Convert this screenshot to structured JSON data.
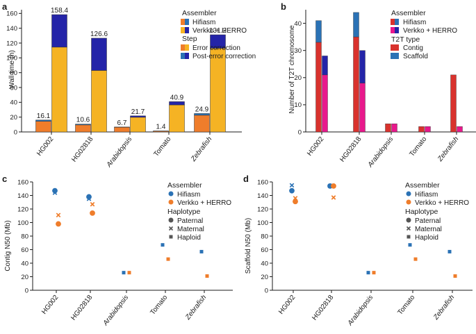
{
  "colors": {
    "hifiasm_error": "#ef7d2b",
    "hifiasm_post": "#2b72b5",
    "verkko_error": "#f5b324",
    "verkko_post": "#2424a8",
    "contig_hifiasm": "#d9322d",
    "contig_verkko": "#e8188c",
    "scaffold_hifiasm": "#2b72b5",
    "scaffold_verkko": "#2424a8",
    "scatter_hifiasm": "#2b72b5",
    "scatter_verkko": "#ef7d2b"
  },
  "panels": {
    "a": {
      "label": "a",
      "legend": {
        "assembler_title": "Assembler",
        "assembler_items": [
          "Hifiasm",
          "Verkko + HERRO"
        ],
        "step_title": "Step",
        "step_items": [
          "Error correction",
          "Post-error correction"
        ]
      }
    },
    "b": {
      "label": "b",
      "legend": {
        "assembler_title": "Assembler",
        "assembler_items": [
          "Hifiasm",
          "Verkko + HERRO"
        ],
        "type_title": "T2T type",
        "type_items": [
          "Contig",
          "Scaffold"
        ]
      }
    },
    "c": {
      "label": "c",
      "legend": {
        "assembler_title": "Assembler",
        "assembler_items": [
          "Hifiasm",
          "Verkko + HERRO"
        ],
        "haplotype_title": "Haplotype",
        "haplotype_items": [
          "Paternal",
          "Maternal",
          "Haploid"
        ]
      }
    },
    "d": {
      "label": "d",
      "legend": {
        "assembler_title": "Assembler",
        "assembler_items": [
          "Hifiasm",
          "Verkko + HERRO"
        ],
        "haplotype_title": "Haplotype",
        "haplotype_items": [
          "Paternal",
          "Maternal",
          "Haploid"
        ]
      }
    }
  },
  "chart_data": [
    {
      "panel": "a",
      "type": "bar",
      "stacked": true,
      "ylabel": "Wall time (h)",
      "ylim": [
        0,
        165
      ],
      "yticks": [
        0,
        20,
        40,
        60,
        80,
        100,
        120,
        140,
        160
      ],
      "categories": [
        "HG002",
        "HG02818",
        "Arabidopsis",
        "Tomato",
        "Zebrafish"
      ],
      "series": [
        {
          "name": "Hifiasm",
          "error_correction": [
            14.3,
            9.5,
            6.3,
            1.1,
            22.6
          ],
          "post_error_correction": [
            1.8,
            1.1,
            0.4,
            0.3,
            2.3
          ],
          "totals": [
            "16.1",
            "10.6",
            "6.7",
            "1.4",
            "24.9"
          ]
        },
        {
          "name": "Verkko + HERRO",
          "error_correction": [
            114.5,
            83.0,
            19.8,
            36.5,
            113.0
          ],
          "post_error_correction": [
            43.9,
            43.6,
            1.9,
            4.4,
            18.2
          ],
          "totals": [
            "158.4",
            "126.6",
            "21.7",
            "40.9",
            "131.2"
          ]
        }
      ]
    },
    {
      "panel": "b",
      "type": "bar",
      "stacked": true,
      "ylabel": "Number of T2T chromosome",
      "ylim": [
        0,
        45
      ],
      "yticks": [
        0,
        10,
        20,
        30,
        40
      ],
      "categories": [
        "HG002",
        "HG02818",
        "Arabidopsis",
        "Tomato",
        "Zebrafish"
      ],
      "series": [
        {
          "name": "Hifiasm",
          "contig": [
            33,
            35,
            3,
            2,
            21
          ],
          "scaffold": [
            8,
            9,
            0,
            0,
            0
          ]
        },
        {
          "name": "Verkko + HERRO",
          "contig": [
            21,
            18,
            3,
            2,
            2
          ],
          "scaffold": [
            7,
            12,
            0,
            0,
            0
          ]
        }
      ]
    },
    {
      "panel": "c",
      "type": "scatter",
      "ylabel": "Contig N50 (Mb)",
      "ylim": [
        0,
        160
      ],
      "yticks": [
        0,
        20,
        40,
        60,
        80,
        100,
        120,
        140,
        160
      ],
      "categories": [
        "HG002",
        "HG02818",
        "Arabidopsis",
        "Tomato",
        "Zebrafish"
      ],
      "series": [
        {
          "name": "Hifiasm",
          "paternal": [
            147,
            138,
            null,
            null,
            null
          ],
          "maternal": [
            144,
            135,
            null,
            null,
            null
          ],
          "haploid": [
            null,
            null,
            26,
            67,
            57
          ]
        },
        {
          "name": "Verkko + HERRO",
          "paternal": [
            98,
            114,
            null,
            null,
            null
          ],
          "maternal": [
            111,
            127,
            null,
            null,
            null
          ],
          "haploid": [
            null,
            null,
            26,
            46,
            21
          ]
        }
      ]
    },
    {
      "panel": "d",
      "type": "scatter",
      "ylabel": "Scaffold N50 (Mb)",
      "ylim": [
        0,
        160
      ],
      "yticks": [
        0,
        20,
        40,
        60,
        80,
        100,
        120,
        140,
        160
      ],
      "categories": [
        "HG002",
        "HG02818",
        "Arabidopsis",
        "Tomato",
        "Zebrafish"
      ],
      "series": [
        {
          "name": "Hifiasm",
          "paternal": [
            147,
            154,
            null,
            null,
            null
          ],
          "maternal": [
            155,
            154,
            null,
            null,
            null
          ],
          "haploid": [
            null,
            null,
            26,
            67,
            57
          ]
        },
        {
          "name": "Verkko + HERRO",
          "paternal": [
            131,
            154,
            null,
            null,
            null
          ],
          "maternal": [
            136,
            137,
            null,
            null,
            null
          ],
          "haploid": [
            null,
            null,
            26,
            46,
            21
          ]
        }
      ]
    }
  ]
}
